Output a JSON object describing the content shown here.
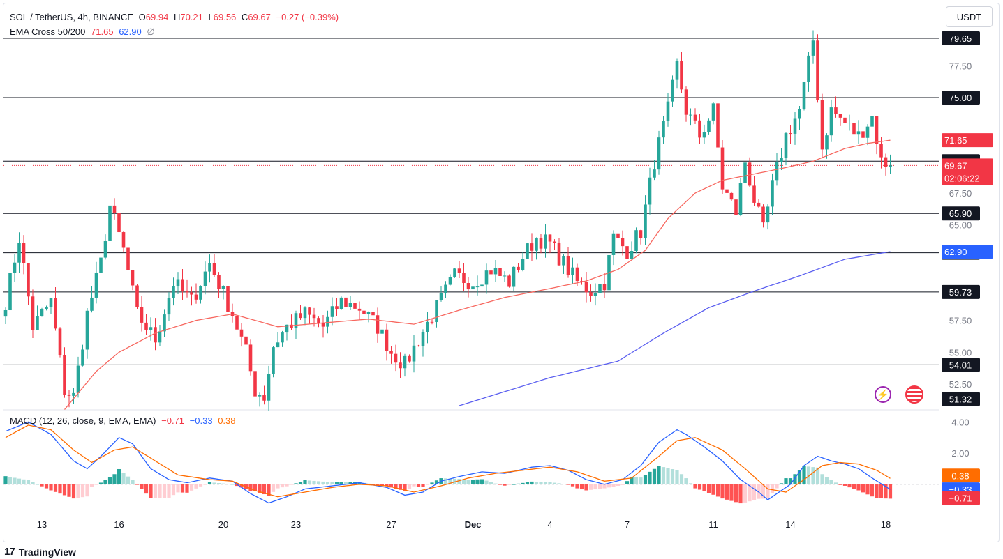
{
  "header": {
    "symbol": "SOL / TetherUS, 4h, BINANCE",
    "open_label": "O",
    "open": "69.94",
    "high_label": "H",
    "high": "70.21",
    "low_label": "L",
    "low": "69.56",
    "close_label": "C",
    "close": "69.67",
    "change": "−0.27 (−0.39%)",
    "ema_label": "EMA Cross 50/200",
    "ema50": "71.65",
    "ema200": "62.90",
    "ema_extra": "∅"
  },
  "currency_button": "USDT",
  "macd_header": {
    "label": "MACD (12, 26, close, 9, EMA, EMA)",
    "hist": "−0.71",
    "macd": "−0.33",
    "signal": "0.38"
  },
  "footer": {
    "brand": "TradingView"
  },
  "colors": {
    "up": "#26a69a",
    "down": "#f23645",
    "ema50": "#f7675f",
    "ema200": "#5b5ff0",
    "macd": "#2962ff",
    "signal": "#ff6d00"
  },
  "chart_data": [
    {
      "type": "candlestick",
      "title": "SOL / TetherUS, 4h, BINANCE",
      "ylim": [
        50.8,
        80.2
      ],
      "price_ticks": [
        "77.50",
        "67.50",
        "65.00",
        "57.50",
        "55.00",
        "52.50"
      ],
      "horizontal_levels": [
        "79.65",
        "75.00",
        "70.00",
        "65.90",
        "62.81",
        "59.73",
        "54.01",
        "51.32"
      ],
      "level_values": [
        79.65,
        75.0,
        70.0,
        65.9,
        62.81,
        59.73,
        54.01,
        51.32
      ],
      "markers": [
        {
          "label": "71.65",
          "value": 71.65,
          "color": "#f23645"
        },
        {
          "label": "69.67",
          "value": 69.67,
          "color": "#f23645",
          "countdown": "02:06:22"
        },
        {
          "label": "62.90",
          "value": 62.9,
          "color": "#2962ff"
        }
      ],
      "x_labels": [
        "13",
        "16",
        "20",
        "23",
        "27",
        "Dec",
        "4",
        "7",
        "11",
        "14",
        "18"
      ],
      "x_label_index": [
        8,
        25,
        48,
        64,
        85,
        103,
        120,
        137,
        156,
        173,
        194
      ],
      "close_anchors": [
        [
          0,
          59
        ],
        [
          3,
          64
        ],
        [
          6,
          57
        ],
        [
          10,
          59
        ],
        [
          13,
          52
        ],
        [
          15,
          51.5
        ],
        [
          18,
          58
        ],
        [
          21,
          62
        ],
        [
          23,
          66.5
        ],
        [
          26,
          63
        ],
        [
          29,
          58
        ],
        [
          33,
          56
        ],
        [
          37,
          60.5
        ],
        [
          41,
          59
        ],
        [
          45,
          62
        ],
        [
          50,
          58
        ],
        [
          53,
          55
        ],
        [
          55,
          52
        ],
        [
          57,
          51.5
        ],
        [
          59,
          55.5
        ],
        [
          62,
          57
        ],
        [
          66,
          58
        ],
        [
          70,
          57
        ],
        [
          74,
          59
        ],
        [
          78,
          58.5
        ],
        [
          82,
          57
        ],
        [
          85,
          55
        ],
        [
          88,
          54
        ],
        [
          91,
          56
        ],
        [
          95,
          58.5
        ],
        [
          99,
          61
        ],
        [
          103,
          60.5
        ],
        [
          107,
          61.5
        ],
        [
          111,
          60.5
        ],
        [
          114,
          62.5
        ],
        [
          117,
          64
        ],
        [
          120,
          63.5
        ],
        [
          123,
          62
        ],
        [
          126,
          60.5
        ],
        [
          129,
          59.8
        ],
        [
          132,
          60.5
        ],
        [
          134,
          64
        ],
        [
          137,
          63
        ],
        [
          140,
          64.5
        ],
        [
          143,
          70
        ],
        [
          146,
          74
        ],
        [
          148,
          77.5
        ],
        [
          150,
          74
        ],
        [
          153,
          72
        ],
        [
          156,
          74
        ],
        [
          158,
          68
        ],
        [
          161,
          66
        ],
        [
          163,
          70
        ],
        [
          165,
          67
        ],
        [
          167,
          64.5
        ],
        [
          169,
          68
        ],
        [
          172,
          72
        ],
        [
          175,
          74
        ],
        [
          178,
          79.5
        ],
        [
          180,
          71
        ],
        [
          182,
          74
        ],
        [
          185,
          73
        ],
        [
          188,
          72
        ],
        [
          191,
          73.5
        ],
        [
          193,
          70
        ],
        [
          195,
          69.67
        ]
      ],
      "ema50_anchors": [
        [
          13,
          50.5
        ],
        [
          20,
          53.5
        ],
        [
          25,
          55
        ],
        [
          33,
          56.5
        ],
        [
          42,
          57.5
        ],
        [
          50,
          58
        ],
        [
          60,
          57
        ],
        [
          70,
          57.3
        ],
        [
          80,
          57.6
        ],
        [
          90,
          57.2
        ],
        [
          100,
          58.3
        ],
        [
          110,
          59.3
        ],
        [
          120,
          60
        ],
        [
          128,
          60.6
        ],
        [
          135,
          61.5
        ],
        [
          141,
          63
        ],
        [
          146,
          65.5
        ],
        [
          152,
          67.5
        ],
        [
          158,
          68.5
        ],
        [
          165,
          69
        ],
        [
          172,
          69.5
        ],
        [
          178,
          70
        ],
        [
          185,
          71
        ],
        [
          190,
          71.4
        ],
        [
          195,
          71.65
        ]
      ],
      "ema200_anchors": [
        [
          100,
          50.8
        ],
        [
          120,
          53
        ],
        [
          135,
          54.3
        ],
        [
          145,
          56.5
        ],
        [
          155,
          58.5
        ],
        [
          165,
          59.8
        ],
        [
          175,
          61
        ],
        [
          185,
          62.3
        ],
        [
          195,
          62.9
        ]
      ]
    },
    {
      "type": "macd",
      "ylim": [
        -1.8,
        4.6
      ],
      "ticks": [
        "4.00",
        "2.00"
      ],
      "markers": [
        {
          "label": "0.38",
          "value": 0.38,
          "color": "#ff6d00"
        },
        {
          "label": "−0.33",
          "value": -0.33,
          "color": "#2962ff"
        },
        {
          "label": "−0.71",
          "value": -0.71,
          "color": "#f23645"
        }
      ],
      "macd_anchors": [
        [
          0,
          3.4
        ],
        [
          5,
          4.0
        ],
        [
          10,
          3.2
        ],
        [
          15,
          1.5
        ],
        [
          18,
          1.0
        ],
        [
          21,
          1.8
        ],
        [
          25,
          3.0
        ],
        [
          28,
          2.6
        ],
        [
          32,
          1.0
        ],
        [
          36,
          0.3
        ],
        [
          40,
          0.1
        ],
        [
          45,
          0.4
        ],
        [
          50,
          0.2
        ],
        [
          54,
          -0.6
        ],
        [
          58,
          -1.2
        ],
        [
          62,
          -0.8
        ],
        [
          66,
          -0.3
        ],
        [
          72,
          -0.1
        ],
        [
          78,
          0.1
        ],
        [
          84,
          -0.2
        ],
        [
          88,
          -0.7
        ],
        [
          92,
          -0.5
        ],
        [
          96,
          0.2
        ],
        [
          100,
          0.5
        ],
        [
          105,
          0.8
        ],
        [
          110,
          0.7
        ],
        [
          116,
          1.1
        ],
        [
          120,
          1.2
        ],
        [
          124,
          0.9
        ],
        [
          128,
          0.3
        ],
        [
          132,
          0.0
        ],
        [
          136,
          0.3
        ],
        [
          140,
          1.2
        ],
        [
          144,
          2.7
        ],
        [
          148,
          3.5
        ],
        [
          150,
          3.2
        ],
        [
          154,
          2.4
        ],
        [
          158,
          1.5
        ],
        [
          162,
          0.3
        ],
        [
          166,
          -0.5
        ],
        [
          168,
          -1.0
        ],
        [
          170,
          -0.6
        ],
        [
          173,
          0.0
        ],
        [
          176,
          1.2
        ],
        [
          179,
          1.8
        ],
        [
          182,
          1.5
        ],
        [
          185,
          1.3
        ],
        [
          188,
          1.0
        ],
        [
          191,
          0.4
        ],
        [
          195,
          -0.33
        ]
      ],
      "signal_anchors": [
        [
          0,
          3.0
        ],
        [
          5,
          3.8
        ],
        [
          10,
          3.5
        ],
        [
          15,
          2.2
        ],
        [
          19,
          1.4
        ],
        [
          24,
          2.2
        ],
        [
          28,
          2.4
        ],
        [
          33,
          1.5
        ],
        [
          38,
          0.6
        ],
        [
          45,
          0.3
        ],
        [
          50,
          0.2
        ],
        [
          55,
          -0.4
        ],
        [
          60,
          -0.8
        ],
        [
          66,
          -0.5
        ],
        [
          72,
          -0.2
        ],
        [
          78,
          0.0
        ],
        [
          84,
          -0.1
        ],
        [
          90,
          -0.5
        ],
        [
          96,
          -0.1
        ],
        [
          102,
          0.4
        ],
        [
          108,
          0.7
        ],
        [
          114,
          0.9
        ],
        [
          120,
          1.1
        ],
        [
          126,
          0.8
        ],
        [
          132,
          0.2
        ],
        [
          138,
          0.4
        ],
        [
          144,
          1.8
        ],
        [
          148,
          2.8
        ],
        [
          152,
          3.0
        ],
        [
          158,
          2.2
        ],
        [
          163,
          1.0
        ],
        [
          168,
          -0.3
        ],
        [
          172,
          -0.5
        ],
        [
          176,
          0.3
        ],
        [
          180,
          1.2
        ],
        [
          184,
          1.4
        ],
        [
          188,
          1.3
        ],
        [
          192,
          0.9
        ],
        [
          195,
          0.38
        ]
      ]
    }
  ]
}
